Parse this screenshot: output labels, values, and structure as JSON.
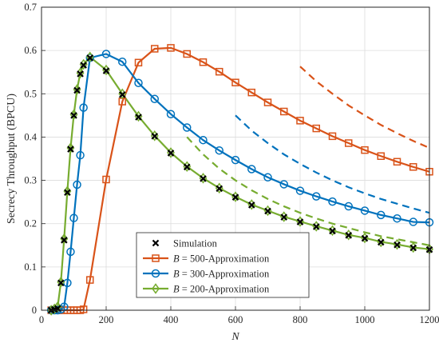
{
  "chart_data": {
    "type": "line",
    "xlabel": "N",
    "ylabel": "Secrecy Throughput (BPCU)",
    "xlim": [
      0,
      1200
    ],
    "ylim": [
      0,
      0.7
    ],
    "xticks": [
      0,
      200,
      400,
      600,
      800,
      1000,
      1200
    ],
    "yticks": [
      0,
      0.1,
      0.2,
      0.3,
      0.4,
      0.5,
      0.6,
      0.7
    ],
    "xtick_labels": [
      "0",
      "200",
      "400",
      "600",
      "800",
      "1000",
      "1200"
    ],
    "ytick_labels": [
      "0",
      "0.1",
      "0.2",
      "0.3",
      "0.4",
      "0.5",
      "0.6",
      "0.7"
    ],
    "grid": true,
    "legend_position": "bottom-center",
    "legend": [
      {
        "label": "Simulation",
        "style": "x-marker",
        "color": "#000000"
      },
      {
        "label": "B = 500-Approximation",
        "prefix": "B",
        "suffix": " = 500-Approximation",
        "style": "line-square",
        "color": "#D95319"
      },
      {
        "label": "B = 300-Approximation",
        "prefix": "B",
        "suffix": " = 300-Approximation",
        "style": "line-circle",
        "color": "#0072BD"
      },
      {
        "label": "B = 200-Approximation",
        "prefix": "B",
        "suffix": " = 200-Approximation",
        "style": "line-diamond",
        "color": "#77AC30"
      }
    ],
    "series": [
      {
        "name": "B = 500-Approximation",
        "color": "#D95319",
        "marker": "square",
        "x": [
          30,
          40,
          50,
          60,
          70,
          80,
          90,
          100,
          110,
          120,
          130,
          150,
          200,
          250,
          300,
          350,
          400,
          450,
          500,
          550,
          600,
          650,
          700,
          750,
          800,
          850,
          900,
          950,
          1000,
          1050,
          1100,
          1150,
          1200
        ],
        "y": [
          0,
          0,
          0,
          0,
          0,
          0,
          0,
          0,
          0,
          0,
          0.002,
          0.07,
          0.302,
          0.482,
          0.572,
          0.604,
          0.606,
          0.592,
          0.573,
          0.551,
          0.526,
          0.503,
          0.48,
          0.459,
          0.438,
          0.42,
          0.402,
          0.386,
          0.37,
          0.356,
          0.343,
          0.331,
          0.32
        ]
      },
      {
        "name": "B = 300-Approximation",
        "color": "#0072BD",
        "marker": "circle",
        "x": [
          30,
          40,
          50,
          60,
          70,
          80,
          90,
          100,
          110,
          120,
          130,
          150,
          200,
          250,
          300,
          350,
          400,
          450,
          500,
          550,
          600,
          650,
          700,
          750,
          800,
          850,
          900,
          950,
          1000,
          1050,
          1100,
          1150,
          1200
        ],
        "y": [
          0,
          0,
          0,
          0.002,
          0.008,
          0.063,
          0.135,
          0.213,
          0.29,
          0.358,
          0.468,
          0.583,
          0.592,
          0.574,
          0.525,
          0.488,
          0.453,
          0.422,
          0.393,
          0.369,
          0.347,
          0.326,
          0.307,
          0.291,
          0.276,
          0.263,
          0.251,
          0.24,
          0.23,
          0.22,
          0.212,
          0.204,
          0.203
        ]
      },
      {
        "name": "B = 200-Approximation",
        "color": "#77AC30",
        "marker": "diamond",
        "x": [
          30,
          40,
          50,
          60,
          70,
          80,
          90,
          100,
          110,
          120,
          130,
          150,
          200,
          250,
          300,
          350,
          400,
          450,
          500,
          550,
          600,
          650,
          700,
          750,
          800,
          850,
          900,
          950,
          1000,
          1050,
          1100,
          1150,
          1200
        ],
        "y": [
          0,
          0.003,
          0.008,
          0.065,
          0.165,
          0.275,
          0.375,
          0.452,
          0.51,
          0.548,
          0.568,
          0.585,
          0.555,
          0.5,
          0.448,
          0.403,
          0.364,
          0.332,
          0.305,
          0.282,
          0.262,
          0.244,
          0.23,
          0.216,
          0.205,
          0.194,
          0.184,
          0.174,
          0.167,
          0.158,
          0.152,
          0.145,
          0.141
        ]
      },
      {
        "name": "Simulation",
        "color": "#000000",
        "marker": "x",
        "x": [
          30,
          40,
          50,
          60,
          70,
          80,
          90,
          100,
          110,
          120,
          130,
          150,
          200,
          250,
          300,
          350,
          400,
          450,
          500,
          550,
          600,
          650,
          700,
          750,
          800,
          850,
          900,
          950,
          1000,
          1050,
          1100,
          1150,
          1200
        ],
        "y": [
          0,
          0.002,
          0.004,
          0.063,
          0.162,
          0.272,
          0.372,
          0.45,
          0.508,
          0.546,
          0.566,
          0.583,
          0.553,
          0.498,
          0.446,
          0.402,
          0.363,
          0.331,
          0.304,
          0.281,
          0.261,
          0.243,
          0.229,
          0.215,
          0.204,
          0.193,
          0.183,
          0.173,
          0.166,
          0.157,
          0.151,
          0.144,
          0.14
        ]
      }
    ],
    "asymptotes": [
      {
        "color": "#D95319",
        "style": "dashed",
        "x": [
          800,
          850,
          900,
          950,
          1000,
          1050,
          1100,
          1150,
          1200
        ],
        "y": [
          0.563,
          0.529,
          0.5,
          0.473,
          0.45,
          0.428,
          0.409,
          0.391,
          0.375
        ]
      },
      {
        "color": "#0072BD",
        "style": "dashed",
        "x": [
          600,
          650,
          700,
          750,
          800,
          850,
          900,
          950,
          1000,
          1050,
          1100,
          1150,
          1200
        ],
        "y": [
          0.45,
          0.415,
          0.386,
          0.36,
          0.338,
          0.318,
          0.3,
          0.284,
          0.27,
          0.257,
          0.246,
          0.235,
          0.225
        ]
      },
      {
        "color": "#77AC30",
        "style": "dashed",
        "x": [
          450,
          500,
          550,
          600,
          650,
          700,
          750,
          800,
          850,
          900,
          950,
          1000,
          1050,
          1100,
          1150,
          1200
        ],
        "y": [
          0.4,
          0.36,
          0.327,
          0.3,
          0.277,
          0.257,
          0.24,
          0.225,
          0.212,
          0.2,
          0.19,
          0.18,
          0.171,
          0.164,
          0.157,
          0.15
        ]
      }
    ]
  }
}
